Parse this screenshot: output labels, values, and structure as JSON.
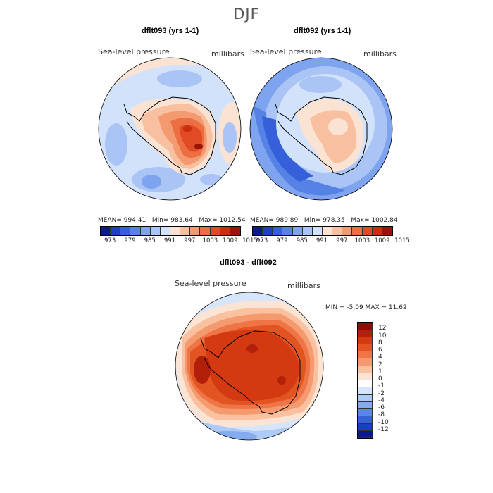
{
  "title": "DJF",
  "panels": [
    {
      "title": "dflt093 (yrs 1-1)",
      "variable": "Sea-level pressure",
      "units": "millibars",
      "stats": {
        "mean_label": "MEAN=",
        "mean": "994.41",
        "min_label": "Min=",
        "min": "983.64",
        "max_label": "Max=",
        "max": "1012.54"
      },
      "scale_labels": [
        "973",
        "979",
        "985",
        "991",
        "997",
        "1003",
        "1009",
        "1015"
      ]
    },
    {
      "title": "dflt092 (yrs 1-1)",
      "variable": "Sea-level pressure",
      "units": "millibars",
      "stats": {
        "mean_label": "MEAN=",
        "mean": "989.89",
        "min_label": "Min=",
        "min": "978.35",
        "max_label": "Max=",
        "max": "1002.84"
      },
      "scale_labels": [
        "973",
        "979",
        "985",
        "991",
        "997",
        "1003",
        "1009",
        "1015"
      ]
    }
  ],
  "diff_panel": {
    "title": "dflt093 - dflt092",
    "variable": "Sea-level pressure",
    "units": "millibars",
    "minmax": "MIN =   -5.09 MAX =   11.62",
    "scale_labels": [
      "12",
      "10",
      "8",
      "6",
      "4",
      "2",
      "1",
      "0",
      "-1",
      "-2",
      "-4",
      "-6",
      "-8",
      "-10",
      "-12"
    ]
  },
  "colors": {
    "bwr14": [
      "#0a1a8c",
      "#1f3fbf",
      "#3560d9",
      "#5682e6",
      "#7ea3ef",
      "#a9c4f5",
      "#d3e2fb",
      "#fbe3d3",
      "#f8c0a0",
      "#f39a70",
      "#ec6e43",
      "#e04a24",
      "#c7300f",
      "#9a1505"
    ],
    "diff16": [
      "#8a0f05",
      "#b3200a",
      "#d33a12",
      "#e35423",
      "#ef7446",
      "#f5996e",
      "#f9c1a0",
      "#fbe4d4",
      "#ffffff",
      "#d7e5fb",
      "#aecaf6",
      "#84aaf0",
      "#5a86e7",
      "#3562d8",
      "#1a40c0",
      "#0a1a8c"
    ],
    "land_line": "#000000"
  }
}
